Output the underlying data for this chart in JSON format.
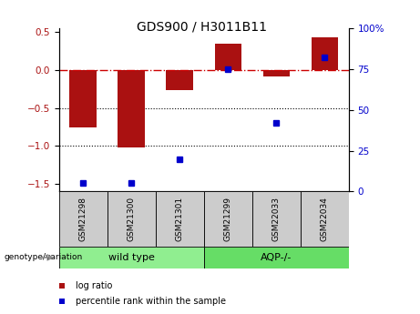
{
  "title": "GDS900 / H3011B11",
  "samples": [
    "GSM21298",
    "GSM21300",
    "GSM21301",
    "GSM21299",
    "GSM22033",
    "GSM22034"
  ],
  "log_ratios": [
    -0.75,
    -1.02,
    -0.26,
    0.35,
    -0.08,
    0.43
  ],
  "percentile_ranks": [
    5,
    5,
    20,
    75,
    42,
    82
  ],
  "groups": [
    {
      "label": "wild type",
      "indices": [
        0,
        1,
        2
      ],
      "color": "#90ee90"
    },
    {
      "label": "AQP-/-",
      "indices": [
        3,
        4,
        5
      ],
      "color": "#66dd66"
    }
  ],
  "bar_color": "#aa1111",
  "dot_color": "#0000cc",
  "ylim_left": [
    -1.6,
    0.55
  ],
  "ylim_right": [
    0,
    100
  ],
  "yticks_left": [
    -1.5,
    -1.0,
    -0.5,
    0.0,
    0.5
  ],
  "yticks_right": [
    0,
    25,
    50,
    75,
    100
  ],
  "hlines": [
    -0.5,
    -1.0
  ],
  "zero_line_color": "#cc0000",
  "hline_color": "#000000",
  "background_color": "#ffffff",
  "legend_items": [
    {
      "label": "log ratio",
      "color": "#aa1111"
    },
    {
      "label": "percentile rank within the sample",
      "color": "#0000cc"
    }
  ],
  "genotype_label": "genotype/variation",
  "title_fontsize": 10,
  "tick_fontsize": 7.5,
  "label_fontsize": 7.5
}
